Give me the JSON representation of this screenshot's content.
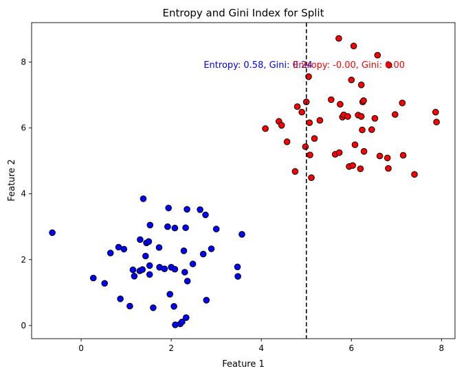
{
  "chart_data": {
    "type": "scatter",
    "title": "Entropy and Gini Index for Split",
    "xlabel": "Feature 1",
    "ylabel": "Feature 2",
    "xlim": [
      -1.1,
      8.3
    ],
    "ylim": [
      -0.4,
      9.2
    ],
    "x_ticks": [
      0,
      2,
      4,
      6,
      8
    ],
    "y_ticks": [
      0,
      2,
      4,
      6,
      8
    ],
    "grid": false,
    "split_line": {
      "x": 5.0,
      "style": "dashed",
      "color": "#000000"
    },
    "series": [
      {
        "color": "#0000ff",
        "points": [
          [
            -0.64,
            2.82
          ],
          [
            0.27,
            1.44
          ],
          [
            0.52,
            1.28
          ],
          [
            0.65,
            2.2
          ],
          [
            0.83,
            2.38
          ],
          [
            0.87,
            0.81
          ],
          [
            0.95,
            2.32
          ],
          [
            1.08,
            0.59
          ],
          [
            1.15,
            1.69
          ],
          [
            1.18,
            1.5
          ],
          [
            1.3,
            1.66
          ],
          [
            1.31,
            2.61
          ],
          [
            1.36,
            1.7
          ],
          [
            1.38,
            3.85
          ],
          [
            1.43,
            2.11
          ],
          [
            1.45,
            2.51
          ],
          [
            1.5,
            2.55
          ],
          [
            1.52,
            1.82
          ],
          [
            1.52,
            1.55
          ],
          [
            1.53,
            3.05
          ],
          [
            1.6,
            0.54
          ],
          [
            1.73,
            2.37
          ],
          [
            1.74,
            1.77
          ],
          [
            1.85,
            1.72
          ],
          [
            1.92,
            3.0
          ],
          [
            1.94,
            3.57
          ],
          [
            1.97,
            0.95
          ],
          [
            2.0,
            1.77
          ],
          [
            2.06,
            0.58
          ],
          [
            2.08,
            1.71
          ],
          [
            2.08,
            2.96
          ],
          [
            2.09,
            0.02
          ],
          [
            2.2,
            0.05
          ],
          [
            2.24,
            0.11
          ],
          [
            2.28,
            2.27
          ],
          [
            2.3,
            1.62
          ],
          [
            2.32,
            2.97
          ],
          [
            2.33,
            0.24
          ],
          [
            2.35,
            3.53
          ],
          [
            2.36,
            1.35
          ],
          [
            2.48,
            1.87
          ],
          [
            2.64,
            3.52
          ],
          [
            2.71,
            2.17
          ],
          [
            2.76,
            3.36
          ],
          [
            2.78,
            0.77
          ],
          [
            2.89,
            2.33
          ],
          [
            3.0,
            2.93
          ],
          [
            3.47,
            1.78
          ],
          [
            3.48,
            1.49
          ],
          [
            3.57,
            2.77
          ]
        ]
      },
      {
        "color": "#ff0000",
        "points": [
          [
            4.09,
            5.98
          ],
          [
            4.39,
            6.2
          ],
          [
            4.45,
            6.08
          ],
          [
            4.57,
            5.58
          ],
          [
            4.75,
            4.68
          ],
          [
            4.8,
            6.65
          ],
          [
            4.9,
            6.48
          ],
          [
            4.98,
            5.43
          ],
          [
            5.0,
            6.79
          ],
          [
            5.05,
            7.56
          ],
          [
            5.07,
            6.16
          ],
          [
            5.08,
            5.18
          ],
          [
            5.11,
            4.49
          ],
          [
            5.18,
            5.68
          ],
          [
            5.3,
            6.23
          ],
          [
            5.55,
            6.86
          ],
          [
            5.64,
            5.2
          ],
          [
            5.72,
            8.72
          ],
          [
            5.73,
            5.25
          ],
          [
            5.75,
            6.72
          ],
          [
            5.8,
            6.33
          ],
          [
            5.83,
            6.4
          ],
          [
            5.92,
            6.35
          ],
          [
            5.95,
            4.83
          ],
          [
            6.0,
            7.46
          ],
          [
            6.03,
            4.86
          ],
          [
            6.05,
            8.49
          ],
          [
            6.08,
            5.49
          ],
          [
            6.15,
            6.39
          ],
          [
            6.2,
            4.76
          ],
          [
            6.22,
            6.35
          ],
          [
            6.22,
            7.31
          ],
          [
            6.24,
            5.94
          ],
          [
            6.25,
            6.79
          ],
          [
            6.27,
            6.83
          ],
          [
            6.28,
            5.29
          ],
          [
            6.45,
            5.95
          ],
          [
            6.52,
            6.29
          ],
          [
            6.58,
            8.21
          ],
          [
            6.63,
            5.15
          ],
          [
            6.8,
            5.09
          ],
          [
            6.82,
            4.77
          ],
          [
            6.83,
            7.91
          ],
          [
            6.97,
            6.41
          ],
          [
            7.13,
            6.76
          ],
          [
            7.15,
            5.17
          ],
          [
            7.4,
            4.59
          ],
          [
            7.87,
            6.48
          ],
          [
            7.89,
            6.18
          ]
        ]
      }
    ],
    "annotations": [
      {
        "text": "Entropy: 0.58, Gini: 0.24",
        "x": 2.72,
        "y": 7.92,
        "color": "#0000ff"
      },
      {
        "text": "Entropy: -0.00, Gini: 0.00",
        "x": 4.7,
        "y": 7.92,
        "color": "#ff0000"
      }
    ]
  }
}
